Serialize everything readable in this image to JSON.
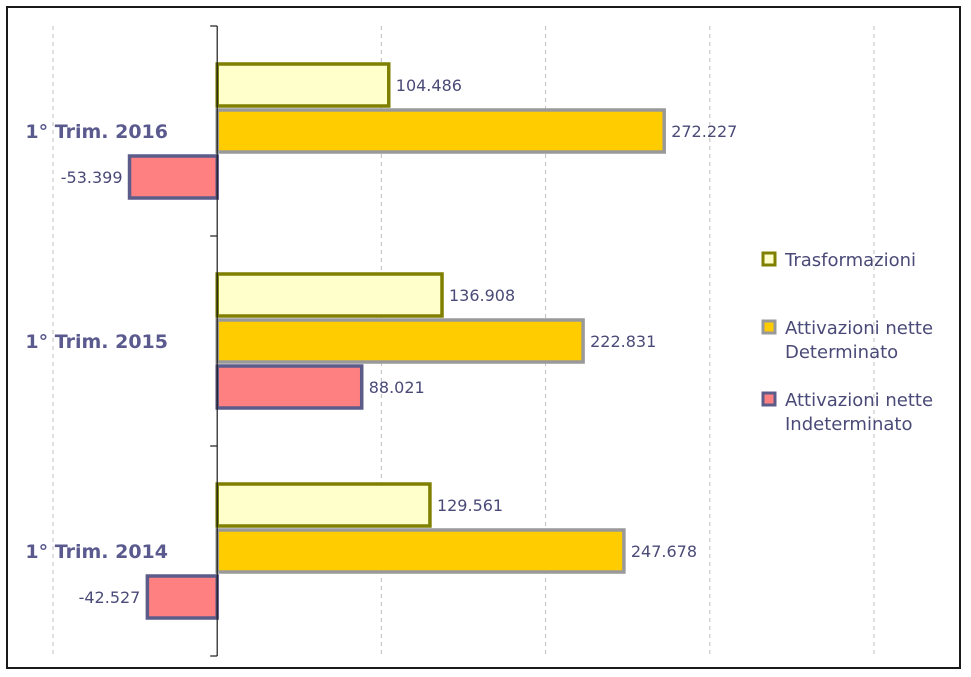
{
  "chart_data": {
    "type": "bar",
    "orientation": "horizontal",
    "categories": [
      "1° Trim. 2016",
      "1° Trim. 2015",
      "1° Trim. 2014"
    ],
    "series": [
      {
        "name": "Trasformazioni",
        "values": [
          104486,
          136908,
          129561
        ],
        "labels": [
          "104.486",
          "136.908",
          "129.561"
        ],
        "fill": "#ffffcc",
        "stroke": "#7f7f00"
      },
      {
        "name": "Attivazioni nette Determinato",
        "name_lines": [
          "Attivazioni nette",
          "Determinato"
        ],
        "values": [
          272227,
          222831,
          247678
        ],
        "labels": [
          "272.227",
          "222.831",
          "247.678"
        ],
        "fill": "#ffcc00",
        "stroke": "#999999"
      },
      {
        "name": "Attivazioni nette Indeterminato",
        "name_lines": [
          "Attivazioni nette",
          "Indeterminato"
        ],
        "values": [
          -53399,
          88021,
          -42527
        ],
        "labels": [
          "-53.399",
          "88.021",
          "-42.527"
        ],
        "fill": "#ff8080",
        "stroke": "#5c5c8a"
      }
    ],
    "xlim": [
      -100000,
      400000
    ],
    "grid": "vertical-dashed",
    "legend_position": "right",
    "title": "",
    "xlabel": "",
    "ylabel": ""
  }
}
